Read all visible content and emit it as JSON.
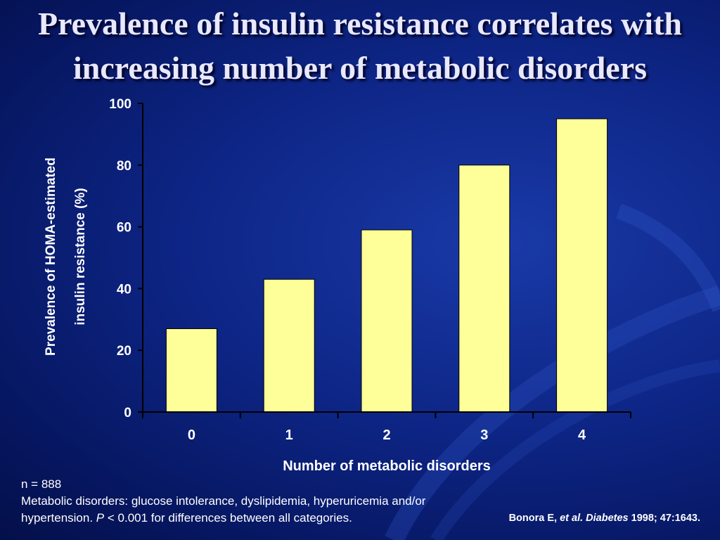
{
  "slide": {
    "title": "Prevalence of insulin resistance correlates with increasing number of metabolic disorders"
  },
  "colors": {
    "background": "#0d2585",
    "bar_fill": "#ffff99",
    "text": "#ffffff"
  },
  "chart_data": {
    "type": "bar",
    "categories": [
      "0",
      "1",
      "2",
      "3",
      "4"
    ],
    "values": [
      27,
      43,
      59,
      80,
      95
    ],
    "xlabel": "Number of metabolic disorders",
    "ylabel": "Prevalence of HOMA-estimated insulin resistance (%)",
    "ylabel_lines": [
      "Prevalence of HOMA-estimated",
      "insulin resistance (%)"
    ],
    "ylim": [
      0,
      100
    ],
    "yticks": [
      "0",
      "20",
      "40",
      "60",
      "80",
      "100"
    ],
    "grid": false
  },
  "footnote": {
    "line1": "n = 888",
    "line2": "Metabolic disorders: glucose intolerance, dyslipidemia, hyperuricemia and/or",
    "line3_prefix": "hypertension. ",
    "line3_p": "P",
    "line3_suffix": " < 0.001 for differences between all categories."
  },
  "citation": {
    "author": "Bonora E, ",
    "etal": "et al. Diabetes",
    "rest": " 1998; 47:1643."
  }
}
